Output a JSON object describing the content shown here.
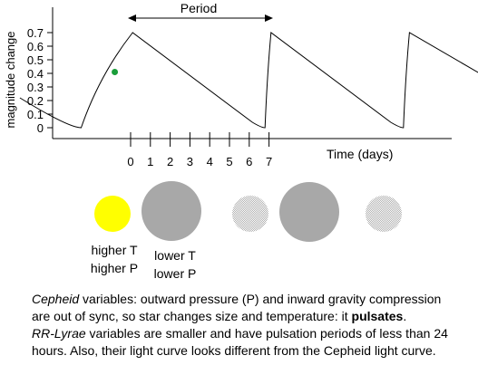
{
  "chart_data": {
    "type": "line",
    "ylabel": "magnitude change",
    "xlabel": "Time (days)",
    "yticks": [
      "0.7",
      "0.6",
      "0.5",
      "0.4",
      "0.3",
      "0.2",
      "0.1",
      "0"
    ],
    "xticks": [
      "0",
      "1",
      "2",
      "3",
      "4",
      "5",
      "6",
      "7"
    ],
    "period_label": "Period",
    "series": [
      {
        "x": [
          -5.6,
          -2.5,
          0.1,
          6.8,
          7.1,
          13.8,
          14.1,
          20.5
        ],
        "y": [
          0.22,
          0.0,
          0.7,
          0.0,
          0.7,
          0.0,
          0.7,
          0.16
        ]
      }
    ],
    "marker": {
      "x": -0.8,
      "y": 0.41,
      "color": "#1a9e3a"
    }
  },
  "stars": {
    "s1": {
      "label1": "higher T",
      "label2": "higher P",
      "color": "#ffff00"
    },
    "s2": {
      "label1": "lower T",
      "label2": "lower P",
      "color": "#a8a8a8"
    },
    "dither_color": "#c8c8c8"
  },
  "caption": {
    "l1_italic": "Cepheid",
    "l1_rest": " variables: outward pressure (P) and inward gravity compression",
    "l2_a": "are out of sync, so star changes size and temperature: it ",
    "l2_bold": "pulsates",
    "l2_end": ".",
    "l3_italic": "RR-Lyrae",
    "l3_rest": " variables are smaller and have pulsation periods of less than 24",
    "l4": "hours. Also, their light curve looks different from the Cepheid light curve."
  }
}
